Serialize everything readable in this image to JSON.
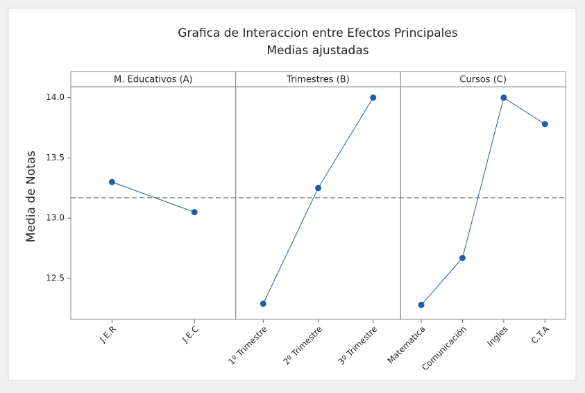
{
  "chart_data": {
    "type": "line",
    "title": "Grafica de Interaccion entre Efectos Principales",
    "subtitle": "Medias ajustadas",
    "ylabel": "Media de Notas",
    "ylim": [
      12.16,
      14.09
    ],
    "yticks": [
      12.5,
      {
        "value": 13.0,
        "label": "13.0"
      },
      13.5,
      {
        "value": 14.0,
        "label": "14.0"
      }
    ],
    "mean": 13.17,
    "color": "#1f5fa8",
    "panels": [
      {
        "title": "M. Educativos (A)",
        "categories": [
          "J.E.R",
          "J.E.C"
        ],
        "values": [
          13.3,
          13.05
        ]
      },
      {
        "title": "Trimestres (B)",
        "categories": [
          "1º Trimestre",
          "2º Trimestre",
          "3º Trimestre"
        ],
        "values": [
          12.29,
          13.25,
          14.0
        ]
      },
      {
        "title": "Cursos (C)",
        "categories": [
          "Matematica",
          "Comunicación",
          "Ingles",
          "C.T.A"
        ],
        "values": [
          12.28,
          12.67,
          14.0,
          13.78
        ]
      }
    ]
  }
}
